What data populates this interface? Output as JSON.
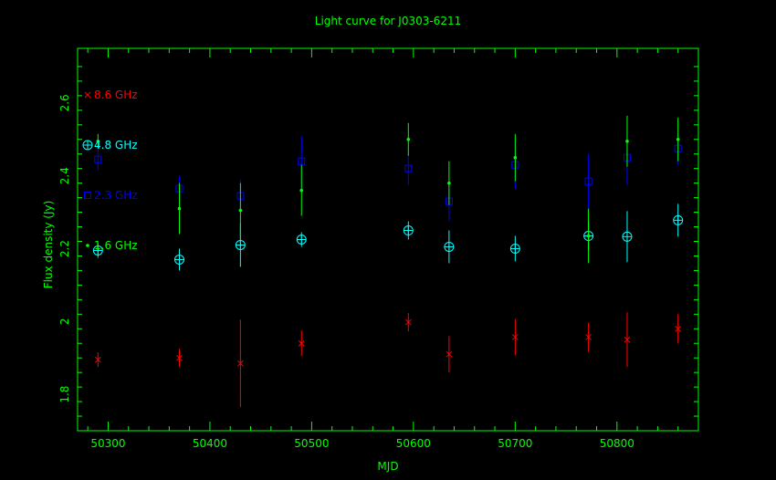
{
  "chart_data": {
    "type": "scatter",
    "title": "Light curve for J0303-6211",
    "xlabel": "MJD",
    "ylabel": "Flux density (Jy)",
    "xlim": [
      50270,
      50880
    ],
    "ylim": [
      1.7,
      2.75
    ],
    "xticks": [
      "50300",
      "50400",
      "50500",
      "50600",
      "50700",
      "50800"
    ],
    "yticks": [
      "1.8",
      "2",
      "2.2",
      "2.4",
      "2.6"
    ],
    "grid": false,
    "legend_position": "left",
    "colors": {
      "background": "#000000",
      "axes": "#00ff00",
      "title": "#00ff00"
    },
    "series": [
      {
        "name": "8.6 GHz",
        "color": "#ff0000",
        "marker": "cross",
        "x": [
          50290,
          50370,
          50430,
          50490,
          50595,
          50635,
          50700,
          50772,
          50810,
          50860
        ],
        "y": [
          1.895,
          1.9,
          1.885,
          1.94,
          1.998,
          1.91,
          1.957,
          1.957,
          1.95,
          1.98
        ],
        "err": [
          0.02,
          0.025,
          0.12,
          0.035,
          0.025,
          0.05,
          0.05,
          0.04,
          0.075,
          0.04
        ]
      },
      {
        "name": "4.8 GHz",
        "color": "#00ffff",
        "marker": "circle-plus",
        "x": [
          50290,
          50370,
          50430,
          50490,
          50595,
          50635,
          50700,
          50772,
          50810,
          50860
        ],
        "y": [
          2.195,
          2.17,
          2.21,
          2.225,
          2.25,
          2.205,
          2.2,
          2.235,
          2.233,
          2.278
        ],
        "err": [
          0.02,
          0.03,
          0.06,
          0.02,
          0.025,
          0.045,
          0.035,
          0.04,
          0.07,
          0.045
        ]
      },
      {
        "name": "2.3 GHz",
        "color": "#0000ff",
        "marker": "square",
        "x": [
          50290,
          50370,
          50430,
          50490,
          50595,
          50635,
          50700,
          50772,
          50810,
          50860
        ],
        "y": [
          2.445,
          2.365,
          2.345,
          2.44,
          2.42,
          2.33,
          2.43,
          2.385,
          2.45,
          2.475
        ],
        "err": [
          0.03,
          0.035,
          0.045,
          0.07,
          0.045,
          0.055,
          0.065,
          0.075,
          0.075,
          0.045
        ]
      },
      {
        "name": "1.6 GHz",
        "color": "#00ff00",
        "marker": "dot",
        "x": [
          50290,
          50370,
          50430,
          50490,
          50595,
          50635,
          50700,
          50772,
          50810,
          50860
        ],
        "y": [
          2.495,
          2.31,
          2.305,
          2.36,
          2.5,
          2.38,
          2.45,
          2.235,
          2.495,
          2.5
        ],
        "err": [
          0.02,
          0.07,
          0.075,
          0.07,
          0.045,
          0.06,
          0.065,
          0.075,
          0.07,
          0.06
        ]
      }
    ]
  }
}
